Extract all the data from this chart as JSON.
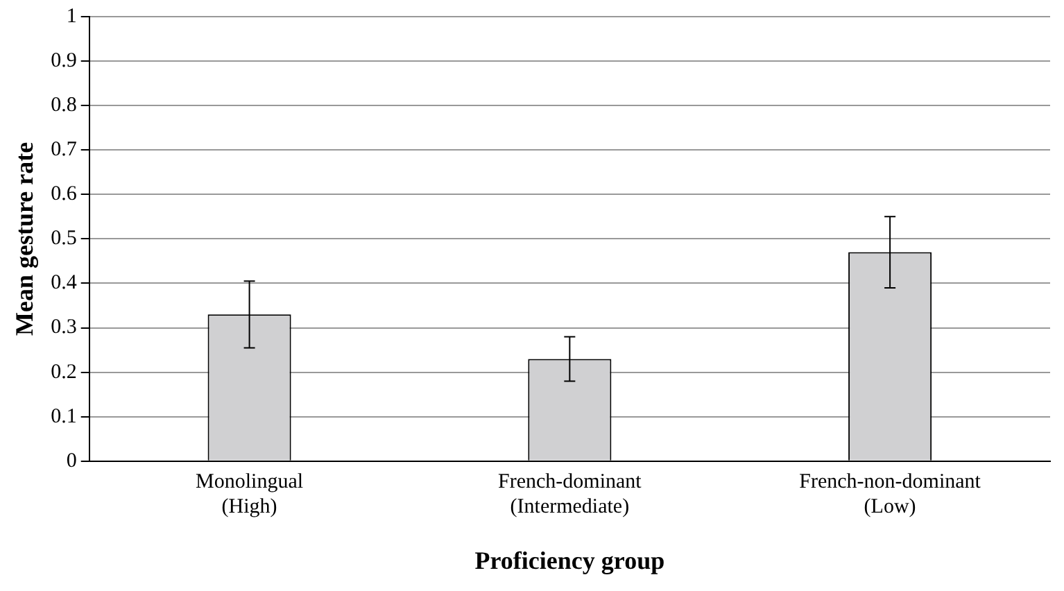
{
  "chart_data": {
    "type": "bar",
    "xlabel": "Proficiency group",
    "ylabel": "Mean gesture rate",
    "categories": [
      "Monolingual\n(High)",
      "French-dominant\n(Intermediate)",
      "French-non-dominant\n(Low)"
    ],
    "values": [
      0.33,
      0.23,
      0.47
    ],
    "errors": [
      0.075,
      0.05,
      0.08
    ],
    "color": "#d0d0d2",
    "ylim": [
      0,
      1
    ],
    "yticks": [
      0,
      0.1,
      0.2,
      0.3,
      0.4,
      0.5,
      0.6,
      0.7,
      0.8,
      0.9,
      1
    ],
    "grid": "y",
    "legend": false
  }
}
